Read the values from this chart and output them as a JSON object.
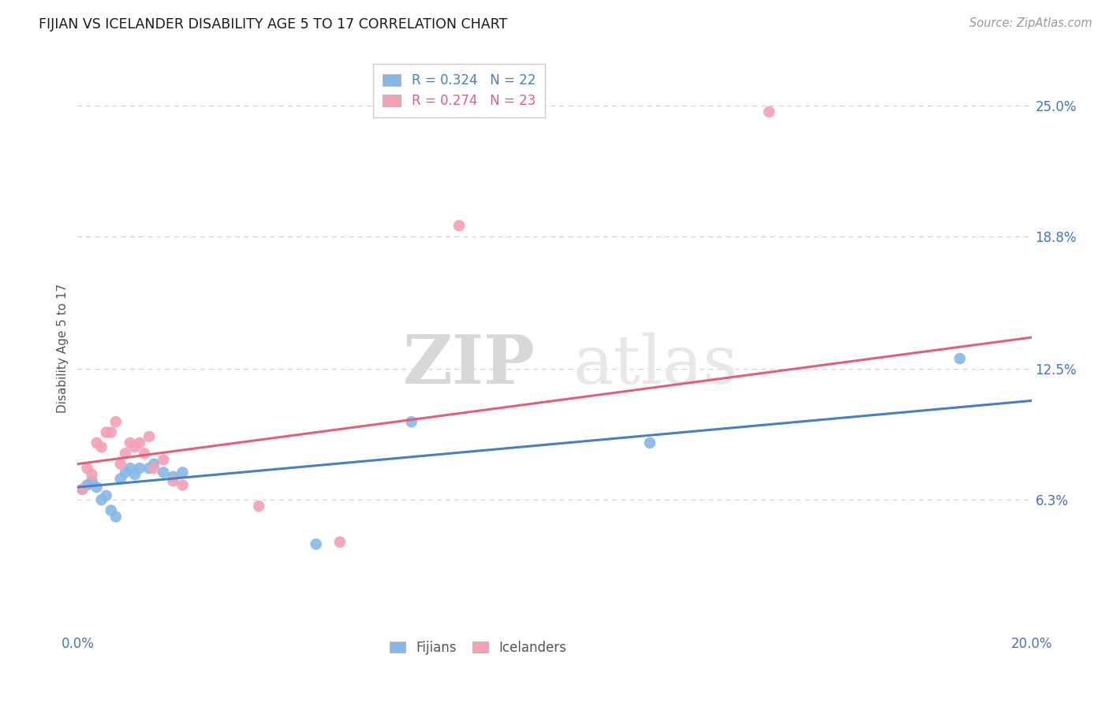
{
  "title": "FIJIAN VS ICELANDER DISABILITY AGE 5 TO 17 CORRELATION CHART",
  "source": "Source: ZipAtlas.com",
  "ylabel": "Disability Age 5 to 17",
  "xlim": [
    0.0,
    0.2
  ],
  "ylim": [
    0.0,
    0.27
  ],
  "xticks": [
    0.0,
    0.05,
    0.1,
    0.15,
    0.2
  ],
  "xtick_labels": [
    "0.0%",
    "",
    "",
    "",
    "20.0%"
  ],
  "ytick_positions": [
    0.063,
    0.125,
    0.188,
    0.25
  ],
  "ytick_labels": [
    "6.3%",
    "12.5%",
    "18.8%",
    "25.0%"
  ],
  "grid_color": "#d0d0d0",
  "bg_color": "#ffffff",
  "fijian_color": "#85b8e8",
  "icelander_color": "#f4a0b5",
  "fijian_line_color": "#4a7fc1",
  "icelander_line_color": "#e0607a",
  "fijian_R": 0.324,
  "fijian_N": 22,
  "icelander_R": 0.274,
  "icelander_N": 23,
  "watermark_zip": "ZIP",
  "watermark_atlas": "atlas",
  "fijian_x": [
    0.001,
    0.002,
    0.003,
    0.004,
    0.005,
    0.006,
    0.007,
    0.008,
    0.009,
    0.01,
    0.011,
    0.012,
    0.013,
    0.015,
    0.016,
    0.018,
    0.02,
    0.022,
    0.05,
    0.07,
    0.12,
    0.185
  ],
  "fijian_y": [
    0.068,
    0.07,
    0.072,
    0.069,
    0.063,
    0.065,
    0.058,
    0.055,
    0.073,
    0.076,
    0.078,
    0.075,
    0.078,
    0.078,
    0.08,
    0.076,
    0.074,
    0.076,
    0.042,
    0.1,
    0.09,
    0.13
  ],
  "icelander_x": [
    0.001,
    0.002,
    0.003,
    0.004,
    0.005,
    0.006,
    0.007,
    0.008,
    0.009,
    0.01,
    0.011,
    0.012,
    0.013,
    0.014,
    0.015,
    0.016,
    0.018,
    0.02,
    0.022,
    0.038,
    0.055,
    0.08,
    0.145
  ],
  "icelander_y": [
    0.068,
    0.078,
    0.075,
    0.09,
    0.088,
    0.095,
    0.095,
    0.1,
    0.08,
    0.085,
    0.09,
    0.088,
    0.09,
    0.085,
    0.093,
    0.078,
    0.082,
    0.072,
    0.07,
    0.06,
    0.043,
    0.193,
    0.247
  ]
}
